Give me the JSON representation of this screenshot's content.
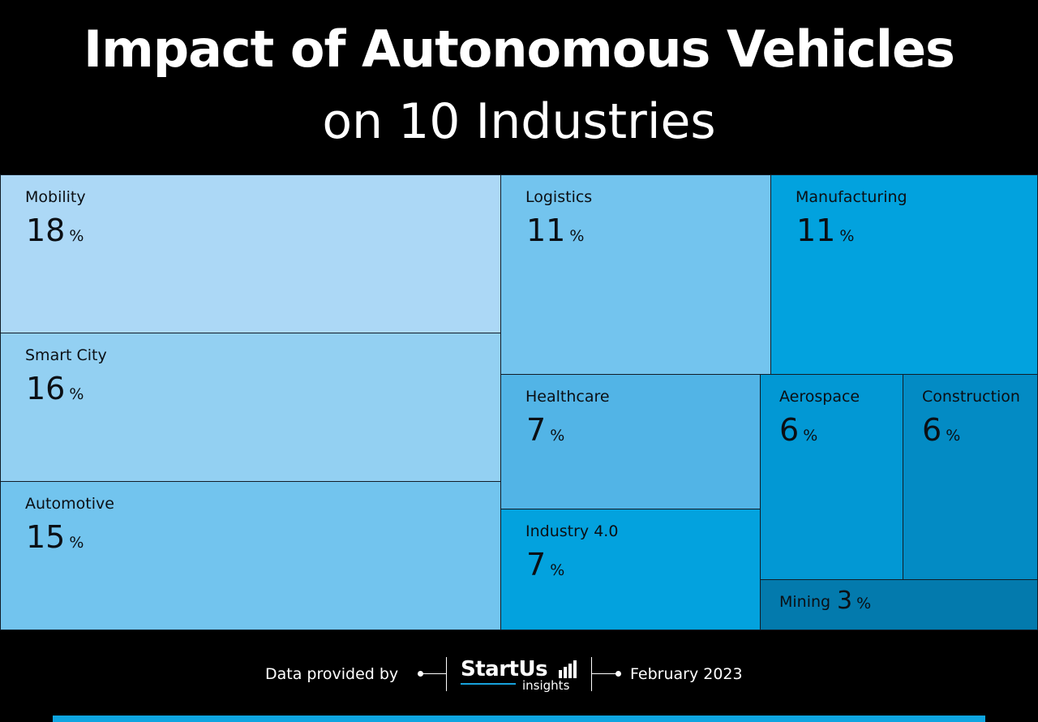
{
  "header": {
    "title": "Impact of Autonomous Vehicles",
    "subtitle": "on 10 Industries"
  },
  "chart_data": {
    "type": "treemap",
    "unit": "%",
    "items": [
      {
        "name": "Mobility",
        "value": 18,
        "color": "#acd8f6"
      },
      {
        "name": "Smart City",
        "value": 16,
        "color": "#93d0f2"
      },
      {
        "name": "Automotive",
        "value": 15,
        "color": "#72c4ee"
      },
      {
        "name": "Logistics",
        "value": 11,
        "color": "#73c4ee"
      },
      {
        "name": "Manufacturing",
        "value": 11,
        "color": "#02a2de"
      },
      {
        "name": "Healthcare",
        "value": 7,
        "color": "#52b4e6"
      },
      {
        "name": "Industry 4.0",
        "value": 7,
        "color": "#03a2de"
      },
      {
        "name": "Aerospace",
        "value": 6,
        "color": "#0298d4"
      },
      {
        "name": "Construction",
        "value": 6,
        "color": "#038bc4"
      },
      {
        "name": "Mining",
        "value": 3,
        "color": "#037aad"
      }
    ]
  },
  "footer": {
    "provided_label": "Data provided by",
    "logo_word": "StartUs",
    "logo_sub": "insights",
    "date": "February 2023"
  },
  "colors": {
    "background": "#000000",
    "accent": "#0ea5e0"
  }
}
